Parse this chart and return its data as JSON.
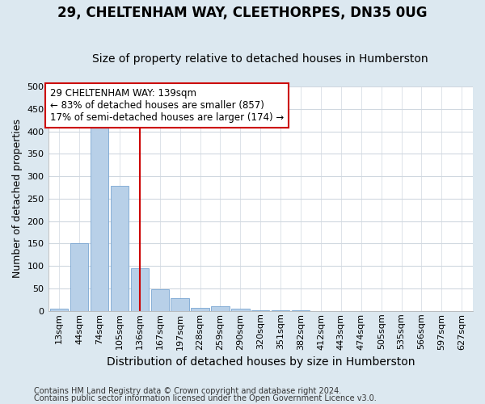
{
  "title": "29, CHELTENHAM WAY, CLEETHORPES, DN35 0UG",
  "subtitle": "Size of property relative to detached houses in Humberston",
  "xlabel": "Distribution of detached houses by size in Humberston",
  "ylabel": "Number of detached properties",
  "footnote1": "Contains HM Land Registry data © Crown copyright and database right 2024.",
  "footnote2": "Contains public sector information licensed under the Open Government Licence v3.0.",
  "bin_labels": [
    "13sqm",
    "44sqm",
    "74sqm",
    "105sqm",
    "136sqm",
    "167sqm",
    "197sqm",
    "228sqm",
    "259sqm",
    "290sqm",
    "320sqm",
    "351sqm",
    "382sqm",
    "412sqm",
    "443sqm",
    "474sqm",
    "505sqm",
    "535sqm",
    "566sqm",
    "597sqm",
    "627sqm"
  ],
  "bar_values": [
    5,
    150,
    420,
    278,
    95,
    48,
    28,
    7,
    10,
    5,
    1,
    2,
    1,
    0,
    0,
    0,
    0,
    0,
    0,
    0,
    0
  ],
  "bar_color": "#b8d0e8",
  "bar_edgecolor": "#6699cc",
  "highlight_index": 4,
  "vline_color": "#cc0000",
  "annotation_text": "29 CHELTENHAM WAY: 139sqm\n← 83% of detached houses are smaller (857)\n17% of semi-detached houses are larger (174) →",
  "annotation_box_color": "#cc0000",
  "ylim": [
    0,
    500
  ],
  "yticks": [
    0,
    50,
    100,
    150,
    200,
    250,
    300,
    350,
    400,
    450,
    500
  ],
  "plot_bg_color": "#ffffff",
  "outer_bg_color": "#dce8f0",
  "grid_color": "#d0d8e0",
  "title_fontsize": 12,
  "subtitle_fontsize": 10,
  "label_fontsize": 9,
  "tick_fontsize": 8,
  "annot_fontsize": 8.5,
  "footnote_fontsize": 7
}
